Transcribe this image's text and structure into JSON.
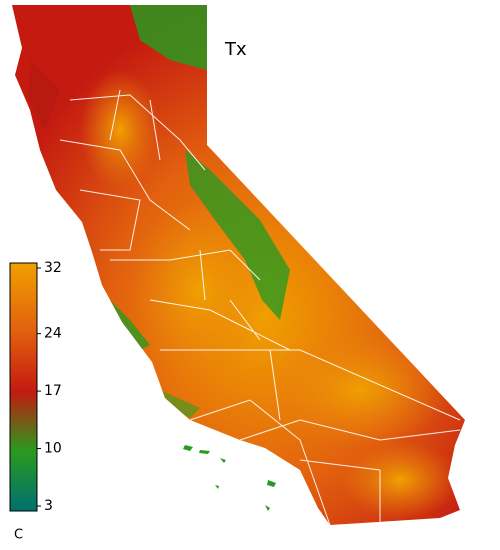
{
  "map": {
    "title": "Tx",
    "colorbar": {
      "ticks": [
        3,
        10,
        17,
        24,
        32
      ],
      "lim": [
        3,
        32
      ],
      "unit": "C",
      "colors": [
        "#00706f",
        "#2a9a20",
        "#c41a10",
        "#e2600f",
        "#f0a000"
      ]
    }
  }
}
